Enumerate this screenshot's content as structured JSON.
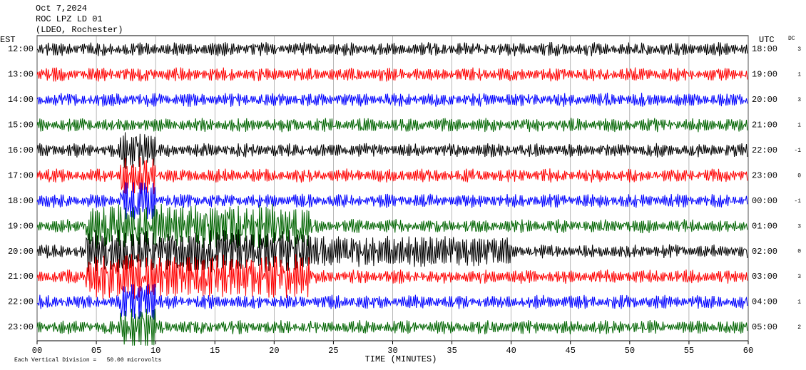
{
  "chart_data": {
    "type": "seismogram",
    "title_lines": [
      "Oct 7,2024",
      "ROC LPZ LD 01",
      "(LDEO, Rochester)"
    ],
    "left_axis_title": "EST",
    "right_axis_title": "UTC",
    "dc_title": "DC",
    "rows": [
      {
        "est": "12:00",
        "utc": "18:00",
        "dc": 3
      },
      {
        "est": "13:00",
        "utc": "19:00",
        "dc": 1
      },
      {
        "est": "14:00",
        "utc": "20:00",
        "dc": 3
      },
      {
        "est": "15:00",
        "utc": "21:00",
        "dc": 1
      },
      {
        "est": "16:00",
        "utc": "22:00",
        "dc": -1
      },
      {
        "est": "17:00",
        "utc": "23:00",
        "dc": 0
      },
      {
        "est": "18:00",
        "utc": "00:00",
        "dc": -1
      },
      {
        "est": "19:00",
        "utc": "01:00",
        "dc": 3
      },
      {
        "est": "20:00",
        "utc": "02:00",
        "dc": 0
      },
      {
        "est": "21:00",
        "utc": "03:00",
        "dc": 3
      },
      {
        "est": "22:00",
        "utc": "04:00",
        "dc": 1
      },
      {
        "est": "23:00",
        "utc": "05:00",
        "dc": 2
      }
    ],
    "colors": [
      "#000000",
      "#ff0000",
      "#0000ff",
      "#006400"
    ],
    "xlim": [
      0,
      60
    ],
    "xticks": [
      {
        "value": 0,
        "label": "00"
      },
      {
        "value": 5,
        "label": "05"
      },
      10,
      15,
      20,
      25,
      30,
      35,
      40,
      45,
      50,
      55,
      60
    ],
    "xlabel": "TIME (MINUTES)",
    "footnote": "Each Vertical Division =   50.00 microvolts",
    "grid": true
  }
}
